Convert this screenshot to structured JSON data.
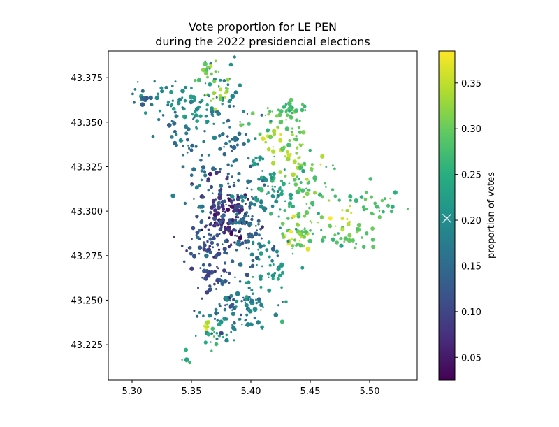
{
  "chart_data": {
    "type": "scatter",
    "title": "Vote proportion for LE PEN\nduring the 2022 presidencial elections",
    "title_lines": [
      "Vote proportion for LE PEN",
      "during the 2022 presidencial elections"
    ],
    "xlim": [
      5.28,
      5.54
    ],
    "ylim": [
      43.205,
      43.39
    ],
    "x_ticks": [
      5.3,
      5.35,
      5.4,
      5.45,
      5.5
    ],
    "x_tick_labels": [
      "5.30",
      "5.35",
      "5.40",
      "5.45",
      "5.50"
    ],
    "y_ticks": [
      43.225,
      43.25,
      43.275,
      43.3,
      43.325,
      43.35,
      43.375
    ],
    "y_tick_labels": [
      "43.225",
      "43.250",
      "43.275",
      "43.300",
      "43.325",
      "43.350",
      "43.375"
    ],
    "grid": false,
    "colorbar": {
      "label": "proportion of votes",
      "colormap": "viridis",
      "vmin": 0.025,
      "vmax": 0.385,
      "ticks": [
        0.05,
        0.1,
        0.15,
        0.2,
        0.25,
        0.3,
        0.35
      ],
      "tick_labels": [
        "0.05",
        "0.10",
        "0.15",
        "0.20",
        "0.25",
        "0.30",
        "0.35"
      ],
      "marker_value": 0.202
    },
    "regions": [
      {
        "x": 5.382,
        "y": 43.297,
        "sx": 0.01,
        "sy": 0.008,
        "value": 0.06,
        "n": 70
      },
      {
        "x": 5.375,
        "y": 43.305,
        "sx": 0.01,
        "sy": 0.01,
        "value": 0.09,
        "n": 55
      },
      {
        "x": 5.36,
        "y": 43.283,
        "sx": 0.01,
        "sy": 0.007,
        "value": 0.12,
        "n": 50
      },
      {
        "x": 5.372,
        "y": 43.265,
        "sx": 0.01,
        "sy": 0.01,
        "value": 0.11,
        "n": 45
      },
      {
        "x": 5.385,
        "y": 43.25,
        "sx": 0.012,
        "sy": 0.008,
        "value": 0.14,
        "n": 40
      },
      {
        "x": 5.395,
        "y": 43.285,
        "sx": 0.012,
        "sy": 0.012,
        "value": 0.14,
        "n": 60
      },
      {
        "x": 5.405,
        "y": 43.305,
        "sx": 0.012,
        "sy": 0.012,
        "value": 0.17,
        "n": 55
      },
      {
        "x": 5.378,
        "y": 43.33,
        "sx": 0.01,
        "sy": 0.015,
        "value": 0.15,
        "n": 50
      },
      {
        "x": 5.372,
        "y": 43.36,
        "sx": 0.01,
        "sy": 0.012,
        "value": 0.19,
        "n": 45
      },
      {
        "x": 5.33,
        "y": 43.364,
        "sx": 0.012,
        "sy": 0.006,
        "value": 0.2,
        "n": 30
      },
      {
        "x": 5.312,
        "y": 43.366,
        "sx": 0.006,
        "sy": 0.004,
        "value": 0.15,
        "n": 12
      },
      {
        "x": 5.35,
        "y": 43.358,
        "sx": 0.006,
        "sy": 0.006,
        "value": 0.22,
        "n": 15
      },
      {
        "x": 5.365,
        "y": 43.38,
        "sx": 0.006,
        "sy": 0.004,
        "value": 0.31,
        "n": 15
      },
      {
        "x": 5.375,
        "y": 43.365,
        "sx": 0.005,
        "sy": 0.004,
        "value": 0.33,
        "n": 14
      },
      {
        "x": 5.425,
        "y": 43.35,
        "sx": 0.012,
        "sy": 0.006,
        "value": 0.3,
        "n": 40
      },
      {
        "x": 5.42,
        "y": 43.34,
        "sx": 0.006,
        "sy": 0.004,
        "value": 0.35,
        "n": 14
      },
      {
        "x": 5.44,
        "y": 43.33,
        "sx": 0.01,
        "sy": 0.006,
        "value": 0.33,
        "n": 30
      },
      {
        "x": 5.455,
        "y": 43.315,
        "sx": 0.012,
        "sy": 0.008,
        "value": 0.29,
        "n": 35
      },
      {
        "x": 5.425,
        "y": 43.315,
        "sx": 0.01,
        "sy": 0.008,
        "value": 0.25,
        "n": 35
      },
      {
        "x": 5.41,
        "y": 43.325,
        "sx": 0.008,
        "sy": 0.008,
        "value": 0.21,
        "n": 25
      },
      {
        "x": 5.445,
        "y": 43.29,
        "sx": 0.012,
        "sy": 0.006,
        "value": 0.3,
        "n": 40
      },
      {
        "x": 5.438,
        "y": 43.285,
        "sx": 0.006,
        "sy": 0.003,
        "value": 0.36,
        "n": 14
      },
      {
        "x": 5.485,
        "y": 43.285,
        "sx": 0.015,
        "sy": 0.004,
        "value": 0.29,
        "n": 30
      },
      {
        "x": 5.505,
        "y": 43.305,
        "sx": 0.012,
        "sy": 0.005,
        "value": 0.28,
        "n": 28
      },
      {
        "x": 5.48,
        "y": 43.295,
        "sx": 0.006,
        "sy": 0.003,
        "value": 0.35,
        "n": 12
      },
      {
        "x": 5.42,
        "y": 43.265,
        "sx": 0.012,
        "sy": 0.01,
        "value": 0.22,
        "n": 40
      },
      {
        "x": 5.405,
        "y": 43.245,
        "sx": 0.012,
        "sy": 0.008,
        "value": 0.2,
        "n": 35
      },
      {
        "x": 5.38,
        "y": 43.24,
        "sx": 0.012,
        "sy": 0.006,
        "value": 0.19,
        "n": 30
      },
      {
        "x": 5.37,
        "y": 43.23,
        "sx": 0.006,
        "sy": 0.004,
        "value": 0.26,
        "n": 14
      },
      {
        "x": 5.362,
        "y": 43.235,
        "sx": 0.003,
        "sy": 0.002,
        "value": 0.34,
        "n": 6
      },
      {
        "x": 5.348,
        "y": 43.217,
        "sx": 0.003,
        "sy": 0.002,
        "value": 0.27,
        "n": 6
      },
      {
        "x": 5.34,
        "y": 43.348,
        "sx": 0.008,
        "sy": 0.008,
        "value": 0.16,
        "n": 25
      },
      {
        "x": 5.355,
        "y": 43.32,
        "sx": 0.008,
        "sy": 0.01,
        "value": 0.17,
        "n": 25
      },
      {
        "x": 5.433,
        "y": 43.358,
        "sx": 0.008,
        "sy": 0.004,
        "value": 0.27,
        "n": 18
      }
    ]
  }
}
